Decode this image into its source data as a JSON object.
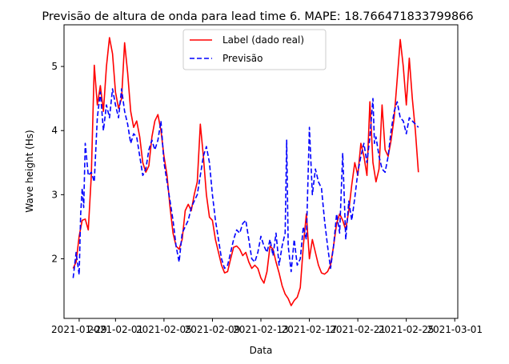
{
  "chart_data": {
    "type": "line",
    "title": "Previsão de altura de onda para lead time 6. MAPE: 18.766471833799866",
    "xlabel": "Data",
    "ylabel": "Wave height (Hs)",
    "x_range": [
      "2021-01-27T18:00",
      "2021-03-01T06:00"
    ],
    "ylim": [
      1.07,
      5.65
    ],
    "x_ticks": [
      "2021-01-29",
      "2021-02-01",
      "2021-02-05",
      "2021-02-09",
      "2021-02-13",
      "2021-02-17",
      "2021-02-21",
      "2021-02-25",
      "2021-03-01"
    ],
    "y_ticks": [
      2,
      3,
      4,
      5
    ],
    "grid": false,
    "legend_position": "upper center",
    "series": [
      {
        "name": "Label (dado real)",
        "color": "#ff0000",
        "style": "solid",
        "points": [
          [
            "2021-01-28T12:00",
            1.85
          ],
          [
            "2021-01-28T18:00",
            1.95
          ],
          [
            "2021-01-29T00:00",
            2.35
          ],
          [
            "2021-01-29T06:00",
            2.6
          ],
          [
            "2021-01-29T12:00",
            2.62
          ],
          [
            "2021-01-29T18:00",
            2.45
          ],
          [
            "2021-01-30T00:00",
            3.3
          ],
          [
            "2021-01-30T06:00",
            5.02
          ],
          [
            "2021-01-30T12:00",
            4.4
          ],
          [
            "2021-01-30T18:00",
            4.7
          ],
          [
            "2021-01-31T00:00",
            4.3
          ],
          [
            "2021-01-31T06:00",
            5.0
          ],
          [
            "2021-01-31T12:00",
            5.45
          ],
          [
            "2021-01-31T18:00",
            5.2
          ],
          [
            "2021-02-01T00:00",
            4.6
          ],
          [
            "2021-02-01T06:00",
            4.35
          ],
          [
            "2021-02-01T12:00",
            4.5
          ],
          [
            "2021-02-01T18:00",
            5.37
          ],
          [
            "2021-02-02T00:00",
            4.9
          ],
          [
            "2021-02-02T06:00",
            4.3
          ],
          [
            "2021-02-02T12:00",
            4.05
          ],
          [
            "2021-02-02T18:00",
            4.15
          ],
          [
            "2021-02-03T00:00",
            3.9
          ],
          [
            "2021-02-03T06:00",
            3.5
          ],
          [
            "2021-02-03T12:00",
            3.35
          ],
          [
            "2021-02-03T18:00",
            3.45
          ],
          [
            "2021-02-04T00:00",
            3.9
          ],
          [
            "2021-02-04T06:00",
            4.15
          ],
          [
            "2021-02-04T12:00",
            4.25
          ],
          [
            "2021-02-04T18:00",
            4.0
          ],
          [
            "2021-02-05T00:00",
            3.6
          ],
          [
            "2021-02-05T06:00",
            3.3
          ],
          [
            "2021-02-05T12:00",
            2.8
          ],
          [
            "2021-02-05T18:00",
            2.4
          ],
          [
            "2021-02-06T00:00",
            2.2
          ],
          [
            "2021-02-06T06:00",
            2.15
          ],
          [
            "2021-02-06T12:00",
            2.3
          ],
          [
            "2021-02-06T18:00",
            2.75
          ],
          [
            "2021-02-07T00:00",
            2.85
          ],
          [
            "2021-02-07T06:00",
            2.75
          ],
          [
            "2021-02-07T12:00",
            3.0
          ],
          [
            "2021-02-07T18:00",
            3.2
          ],
          [
            "2021-02-08T00:00",
            4.1
          ],
          [
            "2021-02-08T06:00",
            3.6
          ],
          [
            "2021-02-08T12:00",
            3.0
          ],
          [
            "2021-02-08T18:00",
            2.65
          ],
          [
            "2021-02-09T00:00",
            2.6
          ],
          [
            "2021-02-09T06:00",
            2.3
          ],
          [
            "2021-02-09T12:00",
            2.1
          ],
          [
            "2021-02-09T18:00",
            1.9
          ],
          [
            "2021-02-10T00:00",
            1.78
          ],
          [
            "2021-02-10T06:00",
            1.8
          ],
          [
            "2021-02-10T12:00",
            2.0
          ],
          [
            "2021-02-10T18:00",
            2.18
          ],
          [
            "2021-02-11T00:00",
            2.2
          ],
          [
            "2021-02-11T06:00",
            2.15
          ],
          [
            "2021-02-11T12:00",
            2.05
          ],
          [
            "2021-02-11T18:00",
            2.1
          ],
          [
            "2021-02-12T00:00",
            1.95
          ],
          [
            "2021-02-12T06:00",
            1.85
          ],
          [
            "2021-02-12T12:00",
            1.9
          ],
          [
            "2021-02-12T18:00",
            1.85
          ],
          [
            "2021-02-13T00:00",
            1.7
          ],
          [
            "2021-02-13T06:00",
            1.62
          ],
          [
            "2021-02-13T12:00",
            1.8
          ],
          [
            "2021-02-13T18:00",
            2.2
          ],
          [
            "2021-02-14T00:00",
            2.15
          ],
          [
            "2021-02-14T06:00",
            1.95
          ],
          [
            "2021-02-14T12:00",
            1.78
          ],
          [
            "2021-02-14T18:00",
            1.58
          ],
          [
            "2021-02-15T00:00",
            1.45
          ],
          [
            "2021-02-15T06:00",
            1.38
          ],
          [
            "2021-02-15T12:00",
            1.27
          ],
          [
            "2021-02-15T18:00",
            1.35
          ],
          [
            "2021-02-16T00:00",
            1.4
          ],
          [
            "2021-02-16T06:00",
            1.55
          ],
          [
            "2021-02-16T12:00",
            2.2
          ],
          [
            "2021-02-16T18:00",
            2.7
          ],
          [
            "2021-02-17T00:00",
            2.0
          ],
          [
            "2021-02-17T06:00",
            2.3
          ],
          [
            "2021-02-17T12:00",
            2.1
          ],
          [
            "2021-02-17T18:00",
            1.9
          ],
          [
            "2021-02-18T00:00",
            1.78
          ],
          [
            "2021-02-18T06:00",
            1.76
          ],
          [
            "2021-02-18T12:00",
            1.8
          ],
          [
            "2021-02-18T18:00",
            1.9
          ],
          [
            "2021-02-19T00:00",
            2.2
          ],
          [
            "2021-02-19T06:00",
            2.55
          ],
          [
            "2021-02-19T12:00",
            2.7
          ],
          [
            "2021-02-19T18:00",
            2.6
          ],
          [
            "2021-02-20T00:00",
            2.45
          ],
          [
            "2021-02-20T06:00",
            2.75
          ],
          [
            "2021-02-20T12:00",
            3.15
          ],
          [
            "2021-02-20T18:00",
            3.5
          ],
          [
            "2021-02-21T00:00",
            3.3
          ],
          [
            "2021-02-21T06:00",
            3.8
          ],
          [
            "2021-02-21T12:00",
            3.6
          ],
          [
            "2021-02-21T18:00",
            3.3
          ],
          [
            "2021-02-22T00:00",
            4.45
          ],
          [
            "2021-02-22T06:00",
            3.5
          ],
          [
            "2021-02-22T12:00",
            3.2
          ],
          [
            "2021-02-22T18:00",
            3.4
          ],
          [
            "2021-02-23T00:00",
            4.4
          ],
          [
            "2021-02-23T06:00",
            3.7
          ],
          [
            "2021-02-23T12:00",
            3.6
          ],
          [
            "2021-02-23T18:00",
            3.85
          ],
          [
            "2021-02-24T00:00",
            4.2
          ],
          [
            "2021-02-24T06:00",
            4.8
          ],
          [
            "2021-02-24T12:00",
            5.42
          ],
          [
            "2021-02-24T18:00",
            5.0
          ],
          [
            "2021-02-25T00:00",
            4.4
          ],
          [
            "2021-02-25T06:00",
            5.13
          ],
          [
            "2021-02-25T12:00",
            4.5
          ],
          [
            "2021-02-25T18:00",
            4.0
          ],
          [
            "2021-02-26T00:00",
            3.35
          ]
        ]
      },
      {
        "name": "Previsão",
        "color": "#0000ff",
        "style": "dashed",
        "points": [
          [
            "2021-01-28T12:00",
            1.7
          ],
          [
            "2021-01-28T18:00",
            2.1
          ],
          [
            "2021-01-29T00:00",
            1.75
          ],
          [
            "2021-01-29T03:00",
            2.7
          ],
          [
            "2021-01-29T06:00",
            3.1
          ],
          [
            "2021-01-29T09:00",
            2.8
          ],
          [
            "2021-01-29T12:00",
            3.8
          ],
          [
            "2021-01-29T18:00",
            3.3
          ],
          [
            "2021-01-30T00:00",
            3.35
          ],
          [
            "2021-01-30T06:00",
            3.2
          ],
          [
            "2021-01-30T12:00",
            4.2
          ],
          [
            "2021-01-30T18:00",
            4.6
          ],
          [
            "2021-01-31T00:00",
            4.0
          ],
          [
            "2021-01-31T06:00",
            4.4
          ],
          [
            "2021-01-31T12:00",
            4.2
          ],
          [
            "2021-01-31T18:00",
            4.65
          ],
          [
            "2021-02-01T00:00",
            4.4
          ],
          [
            "2021-02-01T06:00",
            4.2
          ],
          [
            "2021-02-01T12:00",
            4.65
          ],
          [
            "2021-02-01T18:00",
            4.3
          ],
          [
            "2021-02-02T00:00",
            4.1
          ],
          [
            "2021-02-02T06:00",
            3.8
          ],
          [
            "2021-02-02T12:00",
            3.95
          ],
          [
            "2021-02-02T18:00",
            3.9
          ],
          [
            "2021-02-03T00:00",
            3.6
          ],
          [
            "2021-02-03T06:00",
            3.3
          ],
          [
            "2021-02-03T12:00",
            3.4
          ],
          [
            "2021-02-03T18:00",
            3.7
          ],
          [
            "2021-02-04T00:00",
            3.85
          ],
          [
            "2021-02-04T06:00",
            3.7
          ],
          [
            "2021-02-04T12:00",
            3.85
          ],
          [
            "2021-02-04T18:00",
            4.15
          ],
          [
            "2021-02-05T00:00",
            3.5
          ],
          [
            "2021-02-05T06:00",
            3.2
          ],
          [
            "2021-02-05T12:00",
            2.9
          ],
          [
            "2021-02-05T18:00",
            2.6
          ],
          [
            "2021-02-06T00:00",
            2.2
          ],
          [
            "2021-02-06T06:00",
            1.95
          ],
          [
            "2021-02-06T12:00",
            2.4
          ],
          [
            "2021-02-06T18:00",
            2.5
          ],
          [
            "2021-02-07T00:00",
            2.6
          ],
          [
            "2021-02-07T06:00",
            2.8
          ],
          [
            "2021-02-07T12:00",
            2.9
          ],
          [
            "2021-02-07T18:00",
            3.0
          ],
          [
            "2021-02-08T00:00",
            3.3
          ],
          [
            "2021-02-08T06:00",
            3.6
          ],
          [
            "2021-02-08T12:00",
            3.75
          ],
          [
            "2021-02-08T18:00",
            3.5
          ],
          [
            "2021-02-09T00:00",
            3.0
          ],
          [
            "2021-02-09T06:00",
            2.6
          ],
          [
            "2021-02-09T12:00",
            2.3
          ],
          [
            "2021-02-09T18:00",
            2.0
          ],
          [
            "2021-02-10T00:00",
            1.85
          ],
          [
            "2021-02-10T06:00",
            1.9
          ],
          [
            "2021-02-10T12:00",
            2.1
          ],
          [
            "2021-02-10T18:00",
            2.3
          ],
          [
            "2021-02-11T00:00",
            2.45
          ],
          [
            "2021-02-11T06:00",
            2.4
          ],
          [
            "2021-02-11T12:00",
            2.55
          ],
          [
            "2021-02-11T18:00",
            2.6
          ],
          [
            "2021-02-12T00:00",
            2.3
          ],
          [
            "2021-02-12T06:00",
            2.0
          ],
          [
            "2021-02-12T12:00",
            1.95
          ],
          [
            "2021-02-12T18:00",
            2.1
          ],
          [
            "2021-02-13T00:00",
            2.35
          ],
          [
            "2021-02-13T06:00",
            2.2
          ],
          [
            "2021-02-13T12:00",
            2.1
          ],
          [
            "2021-02-13T18:00",
            2.3
          ],
          [
            "2021-02-14T00:00",
            2.05
          ],
          [
            "2021-02-14T06:00",
            2.4
          ],
          [
            "2021-02-14T12:00",
            1.9
          ],
          [
            "2021-02-14T18:00",
            2.2
          ],
          [
            "2021-02-15T00:00",
            2.4
          ],
          [
            "2021-02-15T03:00",
            3.85
          ],
          [
            "2021-02-15T06:00",
            2.2
          ],
          [
            "2021-02-15T12:00",
            1.8
          ],
          [
            "2021-02-15T18:00",
            2.3
          ],
          [
            "2021-02-16T00:00",
            1.9
          ],
          [
            "2021-02-16T06:00",
            2.0
          ],
          [
            "2021-02-16T12:00",
            2.5
          ],
          [
            "2021-02-16T18:00",
            2.3
          ],
          [
            "2021-02-17T00:00",
            4.05
          ],
          [
            "2021-02-17T06:00",
            3.0
          ],
          [
            "2021-02-17T12:00",
            3.4
          ],
          [
            "2021-02-17T18:00",
            3.2
          ],
          [
            "2021-02-18T00:00",
            3.1
          ],
          [
            "2021-02-18T06:00",
            2.6
          ],
          [
            "2021-02-18T12:00",
            2.2
          ],
          [
            "2021-02-18T18:00",
            1.85
          ],
          [
            "2021-02-19T00:00",
            2.2
          ],
          [
            "2021-02-19T06:00",
            2.7
          ],
          [
            "2021-02-19T12:00",
            2.4
          ],
          [
            "2021-02-19T18:00",
            3.65
          ],
          [
            "2021-02-20T00:00",
            2.3
          ],
          [
            "2021-02-20T06:00",
            2.9
          ],
          [
            "2021-02-20T12:00",
            2.6
          ],
          [
            "2021-02-20T18:00",
            2.95
          ],
          [
            "2021-02-21T00:00",
            3.35
          ],
          [
            "2021-02-21T06:00",
            3.6
          ],
          [
            "2021-02-21T12:00",
            3.8
          ],
          [
            "2021-02-21T18:00",
            3.5
          ],
          [
            "2021-02-22T00:00",
            3.9
          ],
          [
            "2021-02-22T06:00",
            4.5
          ],
          [
            "2021-02-22T09:00",
            3.8
          ],
          [
            "2021-02-22T12:00",
            3.9
          ],
          [
            "2021-02-22T18:00",
            3.6
          ],
          [
            "2021-02-23T00:00",
            3.4
          ],
          [
            "2021-02-23T06:00",
            3.35
          ],
          [
            "2021-02-23T12:00",
            3.6
          ],
          [
            "2021-02-23T18:00",
            4.0
          ],
          [
            "2021-02-24T00:00",
            4.3
          ],
          [
            "2021-02-24T06:00",
            4.45
          ],
          [
            "2021-02-24T12:00",
            4.2
          ],
          [
            "2021-02-24T18:00",
            4.15
          ],
          [
            "2021-02-25T00:00",
            3.95
          ],
          [
            "2021-02-25T06:00",
            4.2
          ],
          [
            "2021-02-25T12:00",
            4.15
          ],
          [
            "2021-02-25T18:00",
            4.1
          ],
          [
            "2021-02-26T00:00",
            4.05
          ]
        ]
      }
    ]
  }
}
